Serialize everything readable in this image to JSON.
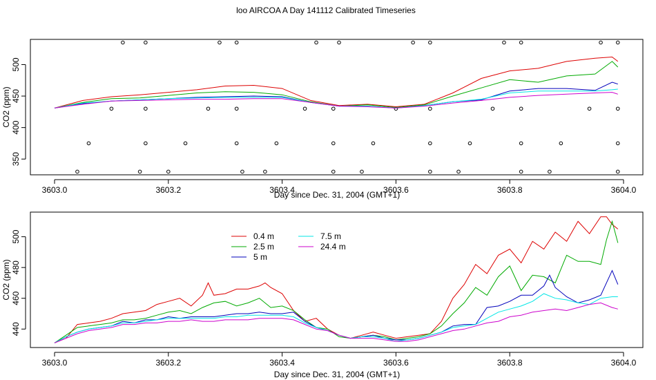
{
  "title": "loo AIRCOA A  Day 141112  Calibrated Timeseries",
  "colors": {
    "red": "#dd0000",
    "green": "#00aa00",
    "blue": "#0000bb",
    "cyan": "#00e6e6",
    "magenta": "#cc00cc"
  },
  "chart_data": [
    {
      "type": "line",
      "xlabel": "Day since Dec. 31, 2004 (GMT+1)",
      "ylabel": "CO2 (ppm)",
      "xlim": [
        3603.0,
        3604.0
      ],
      "ylim": [
        325,
        540
      ],
      "xticks": [
        3603.0,
        3603.2,
        3603.4,
        3603.6,
        3603.8,
        3604.0
      ],
      "yticks": [
        350,
        400,
        450,
        500
      ],
      "series": [
        {
          "color": "red",
          "x": [
            3603.0,
            3603.05,
            3603.1,
            3603.15,
            3603.2,
            3603.25,
            3603.3,
            3603.35,
            3603.4,
            3603.45,
            3603.5,
            3603.55,
            3603.6,
            3603.65,
            3603.7,
            3603.75,
            3603.8,
            3603.85,
            3603.9,
            3603.95,
            3603.98,
            3603.99
          ],
          "y": [
            431,
            443,
            449,
            452,
            456,
            460,
            466,
            467,
            462,
            443,
            435,
            437,
            433,
            437,
            455,
            478,
            490,
            494,
            505,
            510,
            512,
            505
          ]
        },
        {
          "color": "green",
          "x": [
            3603.0,
            3603.05,
            3603.1,
            3603.15,
            3603.2,
            3603.25,
            3603.3,
            3603.35,
            3603.4,
            3603.45,
            3603.5,
            3603.55,
            3603.6,
            3603.65,
            3603.7,
            3603.75,
            3603.8,
            3603.85,
            3603.9,
            3603.95,
            3603.98,
            3603.99
          ],
          "y": [
            431,
            440,
            446,
            447,
            451,
            455,
            457,
            456,
            452,
            441,
            434,
            436,
            432,
            436,
            450,
            463,
            476,
            472,
            482,
            485,
            505,
            496
          ]
        },
        {
          "color": "blue",
          "x": [
            3603.0,
            3603.05,
            3603.1,
            3603.15,
            3603.2,
            3603.25,
            3603.3,
            3603.35,
            3603.4,
            3603.45,
            3603.5,
            3603.55,
            3603.6,
            3603.65,
            3603.7,
            3603.75,
            3603.8,
            3603.85,
            3603.9,
            3603.95,
            3603.98,
            3603.99
          ],
          "y": [
            431,
            438,
            442,
            444,
            446,
            448,
            449,
            450,
            449,
            440,
            434,
            434,
            431,
            435,
            441,
            444,
            458,
            462,
            462,
            459,
            472,
            469
          ]
        },
        {
          "color": "cyan",
          "x": [
            3603.0,
            3603.05,
            3603.1,
            3603.15,
            3603.2,
            3603.25,
            3603.3,
            3603.35,
            3603.4,
            3603.45,
            3603.5,
            3603.55,
            3603.6,
            3603.65,
            3603.7,
            3603.75,
            3603.8,
            3603.85,
            3603.9,
            3603.95,
            3603.98,
            3603.99
          ],
          "y": [
            431,
            439,
            442,
            444,
            446,
            447,
            448,
            448,
            448,
            440,
            434,
            434,
            431,
            435,
            441,
            445,
            455,
            458,
            458,
            458,
            460,
            461
          ]
        },
        {
          "color": "magenta",
          "x": [
            3603.0,
            3603.05,
            3603.1,
            3603.15,
            3603.2,
            3603.25,
            3603.3,
            3603.35,
            3603.4,
            3603.45,
            3603.5,
            3603.55,
            3603.6,
            3603.65,
            3603.7,
            3603.75,
            3603.8,
            3603.85,
            3603.9,
            3603.95,
            3603.98,
            3603.99
          ],
          "y": [
            431,
            437,
            442,
            443,
            444,
            445,
            445,
            446,
            446,
            440,
            434,
            433,
            431,
            434,
            439,
            443,
            448,
            451,
            453,
            455,
            456,
            453
          ]
        }
      ],
      "markers": {
        "x": [
          3603.12,
          3603.16,
          3603.29,
          3603.32,
          3603.46,
          3603.5,
          3603.63,
          3603.66,
          3603.79,
          3603.82,
          3603.96,
          3603.99,
          3603.1,
          3603.16,
          3603.27,
          3603.32,
          3603.44,
          3603.49,
          3603.6,
          3603.66,
          3603.77,
          3603.82,
          3603.94,
          3603.99,
          3603.06,
          3603.16,
          3603.23,
          3603.32,
          3603.39,
          3603.49,
          3603.56,
          3603.66,
          3603.73,
          3603.82,
          3603.89,
          3603.99,
          3603.04,
          3603.15,
          3603.2,
          3603.33,
          3603.37,
          3603.49,
          3603.54,
          3603.66,
          3603.71,
          3603.82,
          3603.87,
          3603.99
        ],
        "y": [
          535,
          535,
          535,
          535,
          535,
          535,
          535,
          535,
          535,
          535,
          535,
          535,
          430,
          430,
          430,
          430,
          430,
          430,
          430,
          430,
          430,
          430,
          430,
          430,
          375,
          375,
          375,
          375,
          375,
          375,
          375,
          375,
          375,
          375,
          375,
          375,
          330,
          330,
          330,
          330,
          330,
          330,
          330,
          330,
          330,
          330,
          330,
          330
        ]
      }
    },
    {
      "type": "line",
      "xlabel": "Day since Dec. 31, 2004 (GMT+1)",
      "ylabel": "CO2 (ppm)",
      "xlim": [
        3603.0,
        3604.0
      ],
      "ylim": [
        428,
        516
      ],
      "xticks": [
        3603.0,
        3603.2,
        3603.4,
        3603.6,
        3603.8,
        3604.0
      ],
      "yticks": [
        440,
        460,
        480,
        500
      ],
      "legend": {
        "position": "top-left"
      },
      "series": [
        {
          "name": "0.4 m",
          "color": "red",
          "x": [
            3603.0,
            3603.02,
            3603.04,
            3603.06,
            3603.08,
            3603.1,
            3603.12,
            3603.14,
            3603.16,
            3603.18,
            3603.2,
            3603.22,
            3603.24,
            3603.26,
            3603.27,
            3603.28,
            3603.3,
            3603.32,
            3603.34,
            3603.36,
            3603.37,
            3603.38,
            3603.4,
            3603.42,
            3603.44,
            3603.46,
            3603.48,
            3603.5,
            3603.52,
            3603.54,
            3603.56,
            3603.58,
            3603.6,
            3603.62,
            3603.64,
            3603.66,
            3603.68,
            3603.7,
            3603.72,
            3603.74,
            3603.76,
            3603.78,
            3603.8,
            3603.82,
            3603.84,
            3603.86,
            3603.88,
            3603.9,
            3603.92,
            3603.94,
            3603.96,
            3603.97,
            3603.98,
            3603.99
          ],
          "y": [
            431,
            434,
            443,
            444,
            445,
            447,
            450,
            451,
            452,
            456,
            458,
            460,
            455,
            462,
            470,
            462,
            463,
            466,
            466,
            468,
            470,
            467,
            463,
            452,
            445,
            447,
            440,
            436,
            434,
            436,
            438,
            436,
            434,
            435,
            436,
            437,
            445,
            460,
            469,
            482,
            476,
            488,
            492,
            483,
            497,
            492,
            503,
            497,
            510,
            502,
            513,
            513,
            508,
            505
          ]
        },
        {
          "name": "2.5 m",
          "color": "green",
          "x": [
            3603.0,
            3603.02,
            3603.04,
            3603.06,
            3603.08,
            3603.1,
            3603.12,
            3603.14,
            3603.16,
            3603.18,
            3603.2,
            3603.22,
            3603.24,
            3603.26,
            3603.28,
            3603.3,
            3603.32,
            3603.34,
            3603.36,
            3603.38,
            3603.4,
            3603.42,
            3603.44,
            3603.46,
            3603.48,
            3603.5,
            3603.52,
            3603.54,
            3603.56,
            3603.58,
            3603.6,
            3603.62,
            3603.64,
            3603.66,
            3603.68,
            3603.7,
            3603.72,
            3603.74,
            3603.76,
            3603.78,
            3603.8,
            3603.82,
            3603.84,
            3603.86,
            3603.88,
            3603.9,
            3603.92,
            3603.94,
            3603.96,
            3603.97,
            3603.98,
            3603.99
          ],
          "y": [
            431,
            436,
            441,
            442,
            443,
            444,
            446,
            446,
            447,
            449,
            451,
            452,
            450,
            454,
            457,
            458,
            455,
            457,
            460,
            454,
            455,
            452,
            446,
            441,
            440,
            435,
            434,
            435,
            436,
            435,
            433,
            434,
            435,
            437,
            442,
            450,
            457,
            467,
            462,
            474,
            481,
            465,
            475,
            474,
            470,
            488,
            484,
            484,
            482,
            498,
            510,
            496
          ]
        },
        {
          "name": "5 m",
          "color": "blue",
          "x": [
            3603.0,
            3603.02,
            3603.04,
            3603.06,
            3603.08,
            3603.1,
            3603.12,
            3603.14,
            3603.16,
            3603.18,
            3603.2,
            3603.22,
            3603.24,
            3603.26,
            3603.28,
            3603.3,
            3603.32,
            3603.34,
            3603.36,
            3603.38,
            3603.4,
            3603.42,
            3603.44,
            3603.46,
            3603.48,
            3603.5,
            3603.52,
            3603.54,
            3603.56,
            3603.58,
            3603.6,
            3603.62,
            3603.64,
            3603.66,
            3603.68,
            3603.7,
            3603.72,
            3603.74,
            3603.76,
            3603.78,
            3603.8,
            3603.82,
            3603.84,
            3603.86,
            3603.87,
            3603.88,
            3603.9,
            3603.92,
            3603.94,
            3603.96,
            3603.98,
            3603.99
          ],
          "y": [
            431,
            435,
            438,
            440,
            441,
            442,
            445,
            444,
            446,
            446,
            448,
            447,
            448,
            448,
            448,
            449,
            450,
            450,
            451,
            450,
            450,
            451,
            445,
            441,
            439,
            436,
            434,
            435,
            436,
            434,
            433,
            433,
            434,
            436,
            438,
            442,
            443,
            443,
            454,
            455,
            458,
            462,
            462,
            468,
            475,
            467,
            461,
            457,
            459,
            462,
            478,
            469
          ]
        },
        {
          "name": "7.5 m",
          "color": "cyan",
          "x": [
            3603.0,
            3603.02,
            3603.04,
            3603.06,
            3603.08,
            3603.1,
            3603.12,
            3603.14,
            3603.16,
            3603.18,
            3603.2,
            3603.22,
            3603.24,
            3603.26,
            3603.28,
            3603.3,
            3603.32,
            3603.34,
            3603.36,
            3603.38,
            3603.4,
            3603.42,
            3603.44,
            3603.46,
            3603.48,
            3603.5,
            3603.52,
            3603.54,
            3603.56,
            3603.58,
            3603.6,
            3603.62,
            3603.64,
            3603.66,
            3603.68,
            3603.7,
            3603.72,
            3603.74,
            3603.76,
            3603.78,
            3603.8,
            3603.82,
            3603.84,
            3603.86,
            3603.88,
            3603.9,
            3603.92,
            3603.94,
            3603.96,
            3603.98,
            3603.99
          ],
          "y": [
            431,
            435,
            438,
            440,
            441,
            442,
            444,
            444,
            445,
            446,
            447,
            447,
            447,
            447,
            447,
            448,
            448,
            449,
            449,
            449,
            449,
            448,
            444,
            441,
            439,
            436,
            434,
            435,
            435,
            434,
            432,
            433,
            434,
            436,
            438,
            441,
            442,
            443,
            447,
            451,
            453,
            455,
            458,
            463,
            460,
            459,
            457,
            456,
            460,
            461,
            461
          ]
        },
        {
          "name": "24.4 m",
          "color": "magenta",
          "x": [
            3603.0,
            3603.02,
            3603.04,
            3603.06,
            3603.08,
            3603.1,
            3603.12,
            3603.14,
            3603.16,
            3603.18,
            3603.2,
            3603.22,
            3603.24,
            3603.26,
            3603.28,
            3603.3,
            3603.32,
            3603.34,
            3603.36,
            3603.38,
            3603.4,
            3603.42,
            3603.44,
            3603.46,
            3603.48,
            3603.5,
            3603.52,
            3603.54,
            3603.56,
            3603.58,
            3603.6,
            3603.62,
            3603.64,
            3603.66,
            3603.68,
            3603.7,
            3603.72,
            3603.74,
            3603.76,
            3603.78,
            3603.8,
            3603.82,
            3603.84,
            3603.86,
            3603.88,
            3603.9,
            3603.92,
            3603.94,
            3603.96,
            3603.98,
            3603.99
          ],
          "y": [
            431,
            434,
            437,
            439,
            440,
            441,
            443,
            443,
            444,
            444,
            445,
            445,
            446,
            445,
            445,
            446,
            446,
            446,
            447,
            447,
            447,
            446,
            443,
            440,
            439,
            436,
            434,
            434,
            434,
            433,
            432,
            432,
            433,
            435,
            437,
            439,
            440,
            442,
            444,
            445,
            448,
            449,
            451,
            452,
            453,
            452,
            454,
            456,
            457,
            454,
            453
          ]
        }
      ]
    }
  ]
}
